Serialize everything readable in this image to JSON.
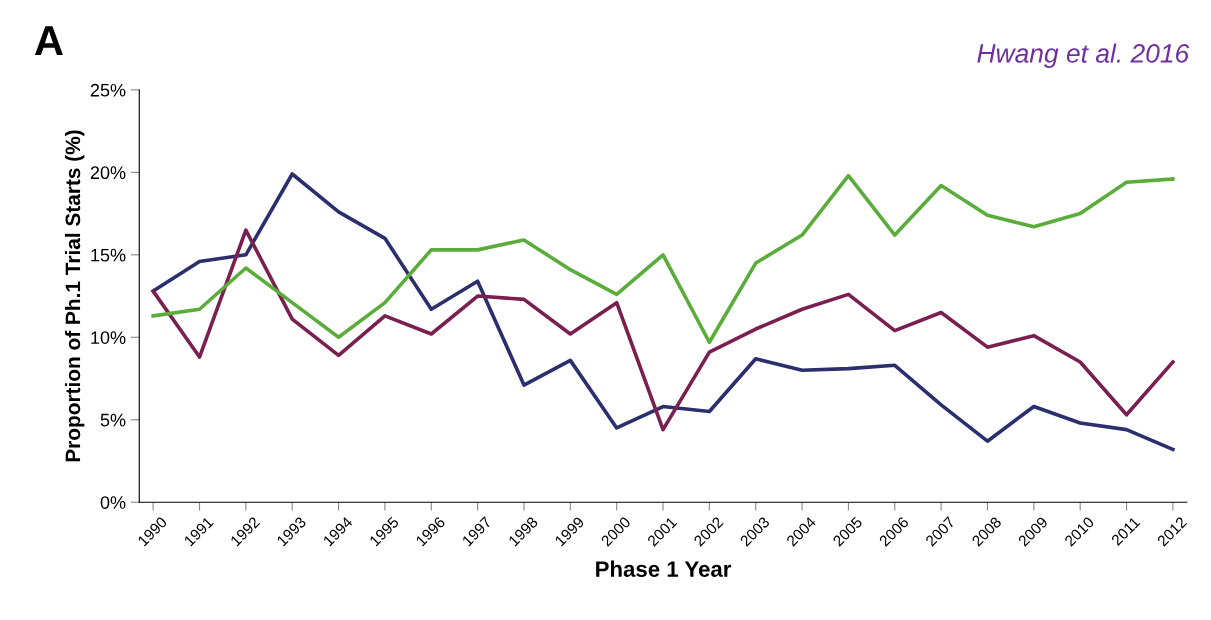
{
  "chart_data": {
    "type": "line",
    "ylabel": "Proportion of Ph.1 Trial Starts (%)",
    "xlabel": "Phase 1 Year",
    "annotations": [
      "A",
      "Hwang et al. 2016"
    ],
    "categories": [
      "1990",
      "1991",
      "1992",
      "1993",
      "1994",
      "1995",
      "1996",
      "1997",
      "1998",
      "1999",
      "2000",
      "2001",
      "2002",
      "2003",
      "2004",
      "2005",
      "2006",
      "2007",
      "2008",
      "2009",
      "2010",
      "2011",
      "2012"
    ],
    "series": [
      {
        "color": "#2b2f6e",
        "values": [
          12.8,
          14.6,
          15.0,
          19.9,
          17.6,
          16.0,
          11.7,
          13.4,
          7.1,
          8.6,
          4.5,
          5.8,
          5.5,
          8.7,
          8.0,
          8.1,
          8.3,
          5.9,
          3.7,
          5.8,
          4.8,
          4.4,
          3.2
        ]
      },
      {
        "color": "#7a2050",
        "values": [
          12.8,
          8.8,
          16.5,
          11.1,
          8.9,
          11.3,
          10.2,
          12.5,
          12.3,
          10.2,
          12.1,
          4.4,
          9.1,
          10.5,
          11.7,
          12.6,
          10.4,
          11.5,
          9.4,
          10.1,
          8.5,
          5.3,
          8.5
        ]
      },
      {
        "color": "#5aad3a",
        "values": [
          11.3,
          11.7,
          14.2,
          12.1,
          10.0,
          12.1,
          15.3,
          15.3,
          15.9,
          14.1,
          12.6,
          15.0,
          9.7,
          14.5,
          16.2,
          19.8,
          16.2,
          19.2,
          17.4,
          16.7,
          17.5,
          19.4,
          19.6
        ]
      }
    ],
    "ylim": [
      0,
      25
    ],
    "yticks": [
      {
        "value": 0,
        "label": "0%"
      },
      {
        "value": 5,
        "label": "5%"
      },
      {
        "value": 10,
        "label": "10%"
      },
      {
        "value": 15,
        "label": "15%"
      },
      {
        "value": 20,
        "label": "20%"
      },
      {
        "value": 25,
        "label": "25%"
      }
    ],
    "grid": false,
    "legend": false,
    "marker": "none",
    "line_style": "solid"
  }
}
